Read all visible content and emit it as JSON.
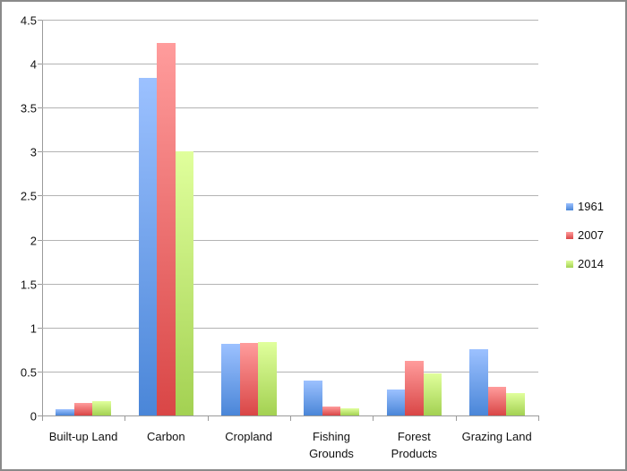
{
  "chart_data": {
    "type": "bar",
    "title": "",
    "xlabel": "",
    "ylabel": "",
    "ylim": [
      0,
      4.5
    ],
    "yticks": [
      "0",
      "0.5",
      "1",
      "1.5",
      "2",
      "2.5",
      "3",
      "3.5",
      "4",
      "4.5"
    ],
    "grid": true,
    "legend_position": "right",
    "categories": [
      "Built-up Land",
      "Carbon",
      "Cropland",
      "Fishing Grounds",
      "Forest Products",
      "Grazing Land"
    ],
    "series": [
      {
        "name": "1961",
        "color": "#4a86d8",
        "values": [
          0.07,
          3.84,
          0.81,
          0.4,
          0.3,
          0.75
        ]
      },
      {
        "name": "2007",
        "color": "#d94646",
        "values": [
          0.14,
          4.24,
          0.82,
          0.1,
          0.62,
          0.33
        ]
      },
      {
        "name": "2014",
        "color": "#a3d152",
        "values": [
          0.16,
          3.0,
          0.84,
          0.08,
          0.48,
          0.25
        ]
      }
    ]
  },
  "axis": {
    "y_labels": [
      "0",
      "0.5",
      "1",
      "1.5",
      "2",
      "2.5",
      "3",
      "3.5",
      "4",
      "4.5"
    ],
    "x_labels": [
      [
        "Built-up Land"
      ],
      [
        "Carbon"
      ],
      [
        "Cropland"
      ],
      [
        "Fishing",
        "Grounds"
      ],
      [
        "Forest",
        "Products"
      ],
      [
        "Grazing Land"
      ]
    ]
  },
  "legend": {
    "items": [
      "1961",
      "2007",
      "2014"
    ]
  }
}
